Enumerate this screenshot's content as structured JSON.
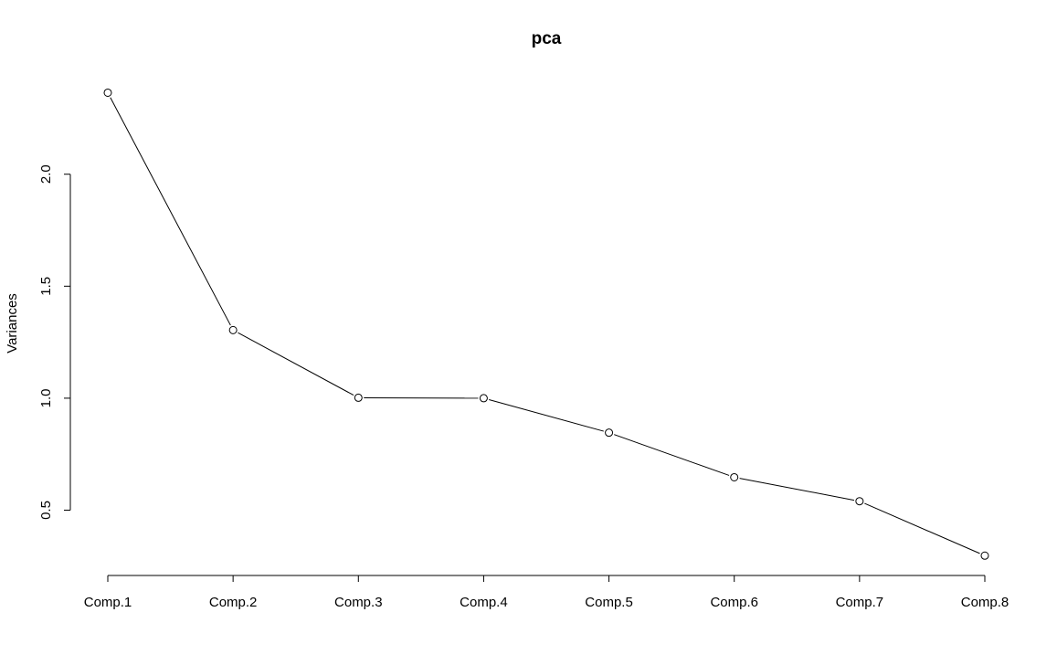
{
  "chart_data": {
    "type": "line",
    "title": "pca",
    "xlabel": "",
    "ylabel": "Variances",
    "categories": [
      "Comp.1",
      "Comp.2",
      "Comp.3",
      "Comp.4",
      "Comp.5",
      "Comp.6",
      "Comp.7",
      "Comp.8"
    ],
    "series": [
      {
        "values": [
          2.364,
          1.304,
          1.002,
          1.0,
          0.846,
          0.647,
          0.54,
          0.297
        ]
      }
    ],
    "yticks": [
      0.5,
      1.0,
      1.5,
      2.0
    ],
    "ytick_labels": [
      "0.5",
      "1.0",
      "1.5",
      "2.0"
    ],
    "ylim": [
      0.29,
      2.37
    ],
    "grid": false,
    "legend": "none",
    "marker": "open-circle"
  }
}
